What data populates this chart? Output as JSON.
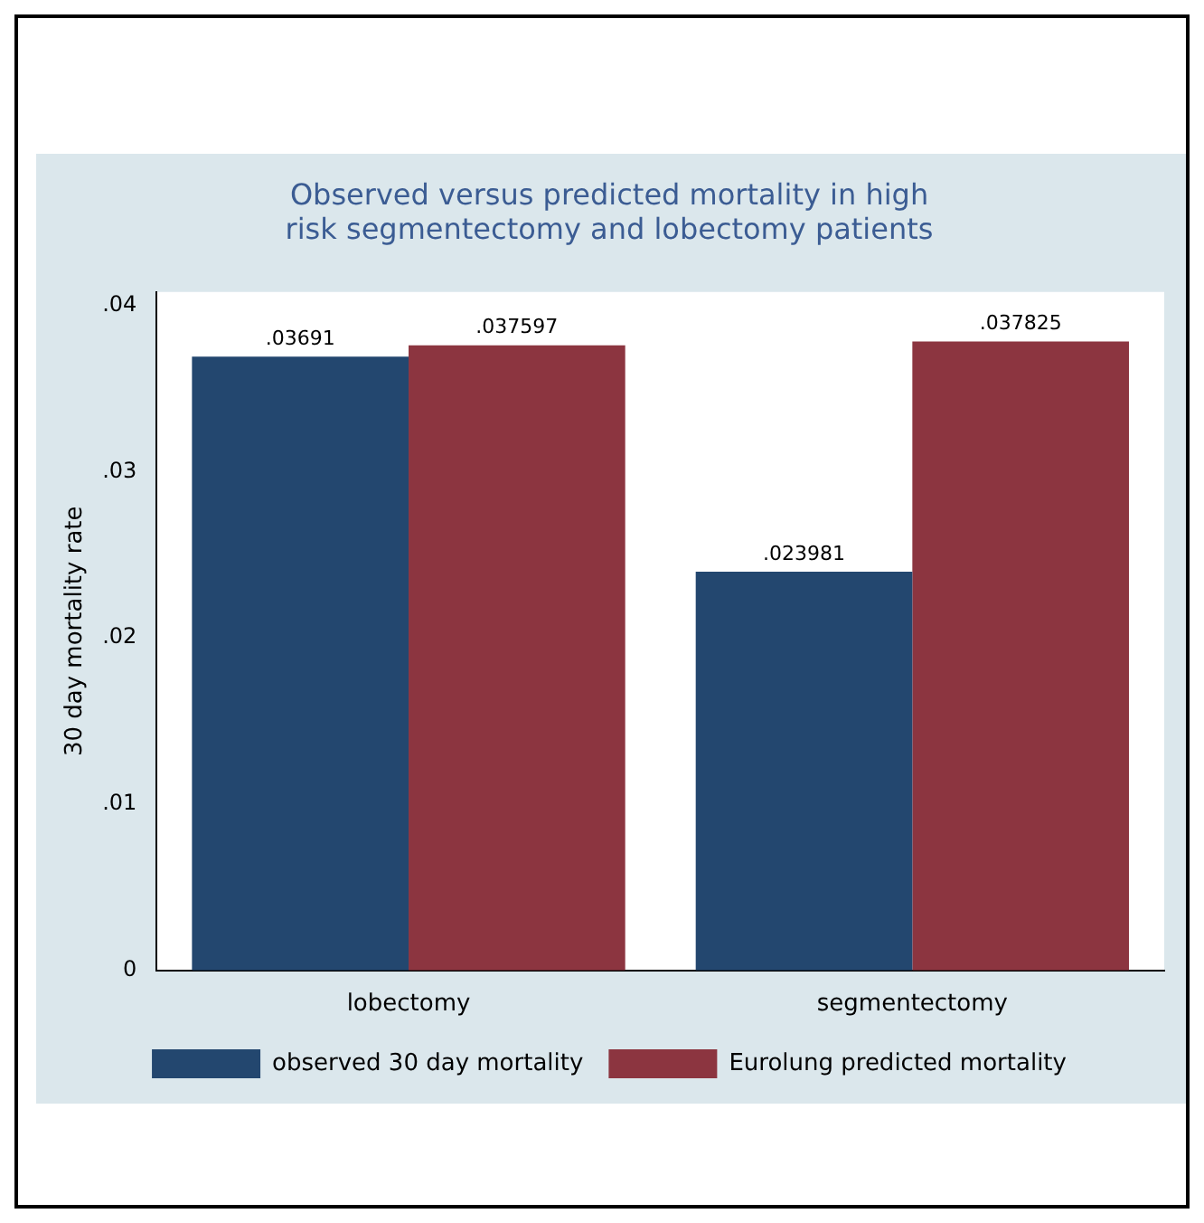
{
  "chart_data": {
    "type": "bar",
    "title": [
      "Observed versus predicted mortality in high",
      "risk segmentectomy and lobectomy patients"
    ],
    "ylabel": "30 day mortality rate",
    "categories": [
      "lobectomy",
      "segmentectomy"
    ],
    "series": [
      {
        "name": "observed 30 day mortality",
        "color": "#23476f",
        "values": [
          0.03691,
          0.023981
        ]
      },
      {
        "name": "Eurolung predicted mortality",
        "color": "#8c3540",
        "values": [
          0.037597,
          0.037825
        ]
      }
    ],
    "value_labels": [
      [
        ".03691",
        ".023981"
      ],
      [
        ".037597",
        ".037825"
      ]
    ],
    "ylim": [
      0,
      0.0408
    ],
    "yticks": [
      {
        "value": 0,
        "label": "0"
      },
      {
        "value": 0.01,
        "label": ".01"
      },
      {
        "value": 0.02,
        "label": ".02"
      },
      {
        "value": 0.03,
        "label": ".03"
      },
      {
        "value": 0.04,
        "label": ".04"
      }
    ],
    "grid": false,
    "legend": "bottom"
  }
}
